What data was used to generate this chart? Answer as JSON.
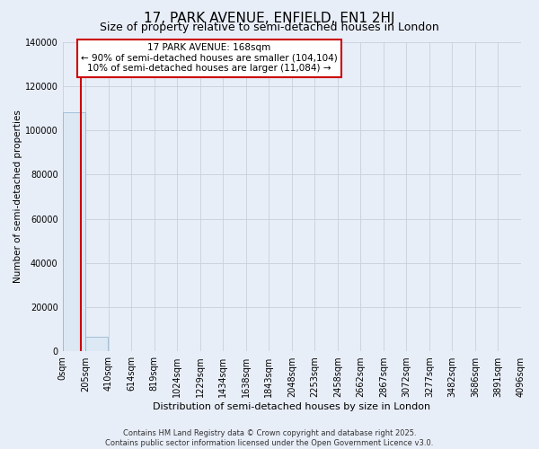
{
  "title": "17, PARK AVENUE, ENFIELD, EN1 2HJ",
  "subtitle": "Size of property relative to semi-detached houses in London",
  "xlabel": "Distribution of semi-detached houses by size in London",
  "ylabel": "Number of semi-detached properties",
  "annotation_text": "17 PARK AVENUE: 168sqm\n← 90% of semi-detached houses are smaller (104,104)\n10% of semi-detached houses are larger (11,084) →",
  "bin_edges": [
    0,
    205,
    410,
    614,
    819,
    1024,
    1229,
    1434,
    1638,
    1843,
    2048,
    2253,
    2458,
    2662,
    2867,
    3072,
    3277,
    3482,
    3686,
    3891,
    4096
  ],
  "bin_labels": [
    "0sqm",
    "205sqm",
    "410sqm",
    "614sqm",
    "819sqm",
    "1024sqm",
    "1229sqm",
    "1434sqm",
    "1638sqm",
    "1843sqm",
    "2048sqm",
    "2253sqm",
    "2458sqm",
    "2662sqm",
    "2867sqm",
    "3072sqm",
    "3277sqm",
    "3482sqm",
    "3686sqm",
    "3891sqm",
    "4096sqm"
  ],
  "bar_heights": [
    108000,
    6500,
    350,
    150,
    80,
    50,
    30,
    20,
    15,
    12,
    10,
    8,
    7,
    6,
    5,
    4,
    4,
    3,
    3,
    2
  ],
  "bar_color": "#dce8f4",
  "bar_edgecolor": "#8ab0cc",
  "vline_x": 168,
  "vline_color": "#cc0000",
  "ylim": [
    0,
    140000
  ],
  "yticks": [
    0,
    20000,
    40000,
    60000,
    80000,
    100000,
    120000,
    140000
  ],
  "background_color": "#e8eef8",
  "grid_color": "#c8d0dc",
  "footer_text": "Contains HM Land Registry data © Crown copyright and database right 2025.\nContains public sector information licensed under the Open Government Licence v3.0.",
  "annotation_box_facecolor": "#ffffff",
  "annotation_box_edgecolor": "#cc0000",
  "title_fontsize": 11,
  "subtitle_fontsize": 9,
  "annot_fontsize": 7.5,
  "tick_fontsize": 7,
  "ylabel_fontsize": 7.5,
  "xlabel_fontsize": 8,
  "footer_fontsize": 6
}
